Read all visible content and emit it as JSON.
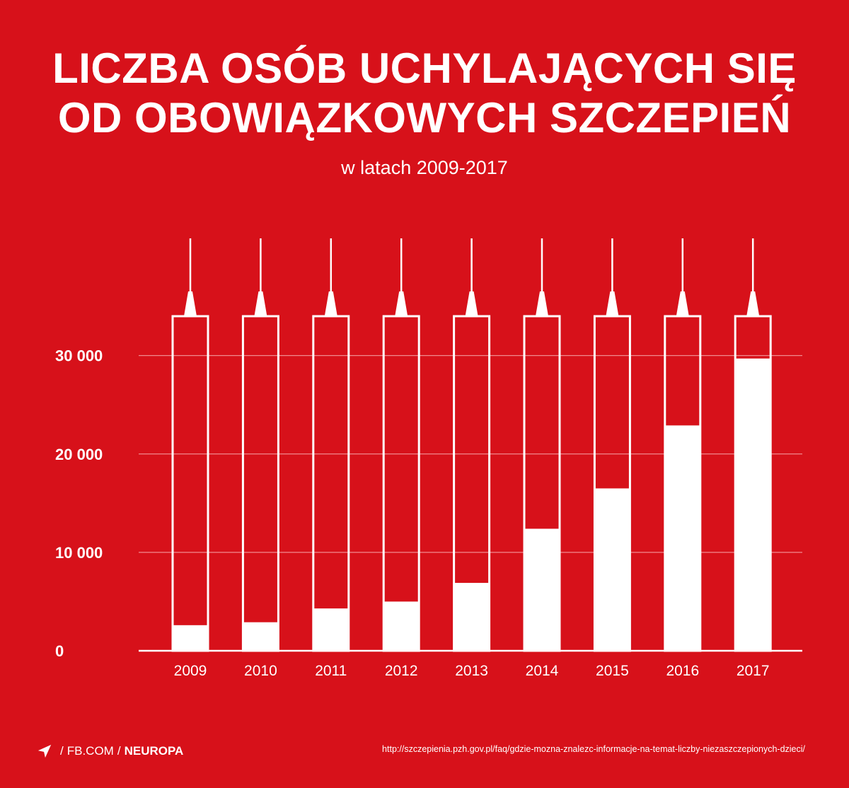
{
  "title_lines": [
    "LICZBA OSÓB UCHYLAJĄCYCH SIĘ",
    "OD OBOWIĄZKOWYCH SZCZEPIEŃ"
  ],
  "subtitle": "w latach 2009-2017",
  "colors": {
    "background": "#d7111a",
    "foreground": "#ffffff"
  },
  "chart_data": {
    "type": "bar",
    "categories": [
      "2009",
      "2010",
      "2011",
      "2012",
      "2013",
      "2014",
      "2015",
      "2016",
      "2017"
    ],
    "values": [
      2600,
      2900,
      4300,
      5000,
      6900,
      12400,
      16500,
      22900,
      29700
    ],
    "y_ticks": [
      0,
      10000,
      20000,
      30000
    ],
    "y_tick_labels": [
      "0",
      "10 000",
      "20 000",
      "30 000"
    ],
    "ylim": [
      0,
      34000
    ],
    "grid": true,
    "bar_style": "syringe"
  },
  "footer": {
    "icon": "location-arrow-icon",
    "separator": "/",
    "site": "FB.COM",
    "brand": "NEUROPA"
  },
  "source_url": "http://szczepienia.pzh.gov.pl/faq/gdzie-mozna-znalezc-informacje-na-temat-liczby-niezaszczepionych-dzieci/"
}
